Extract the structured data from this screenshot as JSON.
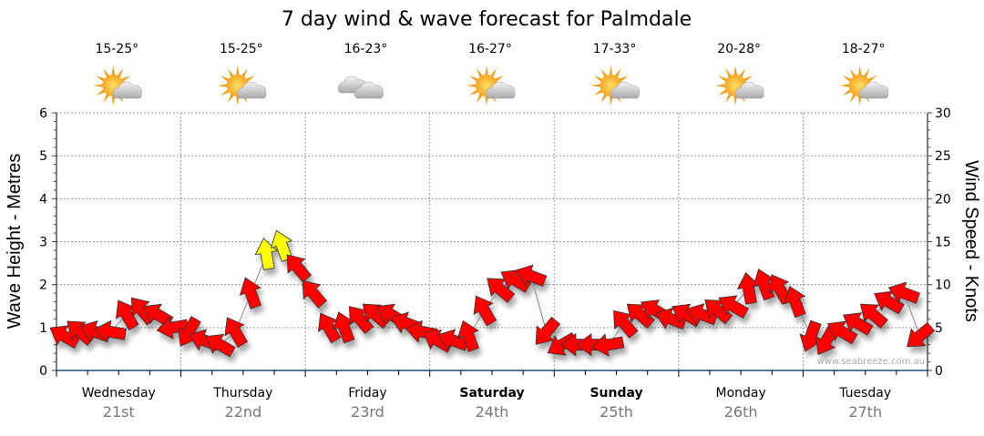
{
  "chart_data": {
    "type": "scatter",
    "title": "7 day wind & wave forecast for Palmdale",
    "ylabel_left": "Wave Height - Metres",
    "ylabel_right": "Wind Speed - Knots",
    "ylim_left": [
      0,
      6
    ],
    "ylim_right": [
      0,
      30
    ],
    "yticks_left": [
      "0",
      "1",
      "2",
      "3",
      "4",
      "5",
      "6"
    ],
    "yticks_right": [
      "0",
      "5",
      "10",
      "15",
      "20",
      "25",
      "30"
    ],
    "grid": true,
    "watermark": "www.seabreeze.com.au",
    "days": [
      {
        "name": "Wednesday",
        "date": "21st",
        "temp": "15-25°",
        "icon": "partly-cloudy-icon",
        "bold": false
      },
      {
        "name": "Thursday",
        "date": "22nd",
        "temp": "15-25°",
        "icon": "partly-cloudy-icon",
        "bold": false
      },
      {
        "name": "Friday",
        "date": "23rd",
        "temp": "16-23°",
        "icon": "cloudy-icon",
        "bold": false
      },
      {
        "name": "Saturday",
        "date": "24th",
        "temp": "16-27°",
        "icon": "partly-cloudy-icon",
        "bold": true
      },
      {
        "name": "Sunday",
        "date": "25th",
        "temp": "17-33°",
        "icon": "partly-cloudy-icon",
        "bold": true
      },
      {
        "name": "Monday",
        "date": "26th",
        "temp": "20-28°",
        "icon": "partly-cloudy-icon",
        "bold": false
      },
      {
        "name": "Tuesday",
        "date": "27th",
        "temp": "18-27°",
        "icon": "partly-cloudy-icon",
        "bold": false
      }
    ],
    "wind_series": {
      "name": "Wind speed (knots), 3-hourly",
      "values": [
        4,
        4.5,
        4.5,
        4.5,
        6.5,
        7,
        6.5,
        5,
        4.5,
        3.5,
        3,
        4.5,
        9,
        13.5,
        14.5,
        12,
        9,
        5,
        5,
        6,
        6.5,
        6.5,
        5.5,
        4.5,
        3.5,
        3.5,
        4,
        7,
        9.5,
        10.5,
        11,
        4.5,
        3,
        3,
        3,
        3,
        5.5,
        6.5,
        7,
        6,
        6.5,
        6.5,
        7,
        7.5,
        9.5,
        10,
        9.5,
        8,
        4,
        3.5,
        4.5,
        5.5,
        6.5,
        8,
        9,
        4
      ],
      "arrow_direction_deg": [
        -60,
        -50,
        -70,
        -80,
        -30,
        -40,
        -60,
        -100,
        -150,
        -70,
        -60,
        -30,
        -20,
        -10,
        -20,
        -40,
        -40,
        -30,
        -20,
        -40,
        -50,
        -60,
        -70,
        -80,
        -60,
        -70,
        -20,
        -30,
        -50,
        -60,
        -70,
        -140,
        -120,
        -90,
        -90,
        -100,
        -40,
        -50,
        -60,
        -70,
        -60,
        -70,
        -50,
        -60,
        -10,
        -20,
        -30,
        -20,
        -160,
        -150,
        -60,
        -60,
        -50,
        -60,
        -70,
        -130
      ],
      "colors": {
        "low": "#ff0000",
        "high": "#ffff00",
        "threshold": 12.5
      }
    }
  }
}
